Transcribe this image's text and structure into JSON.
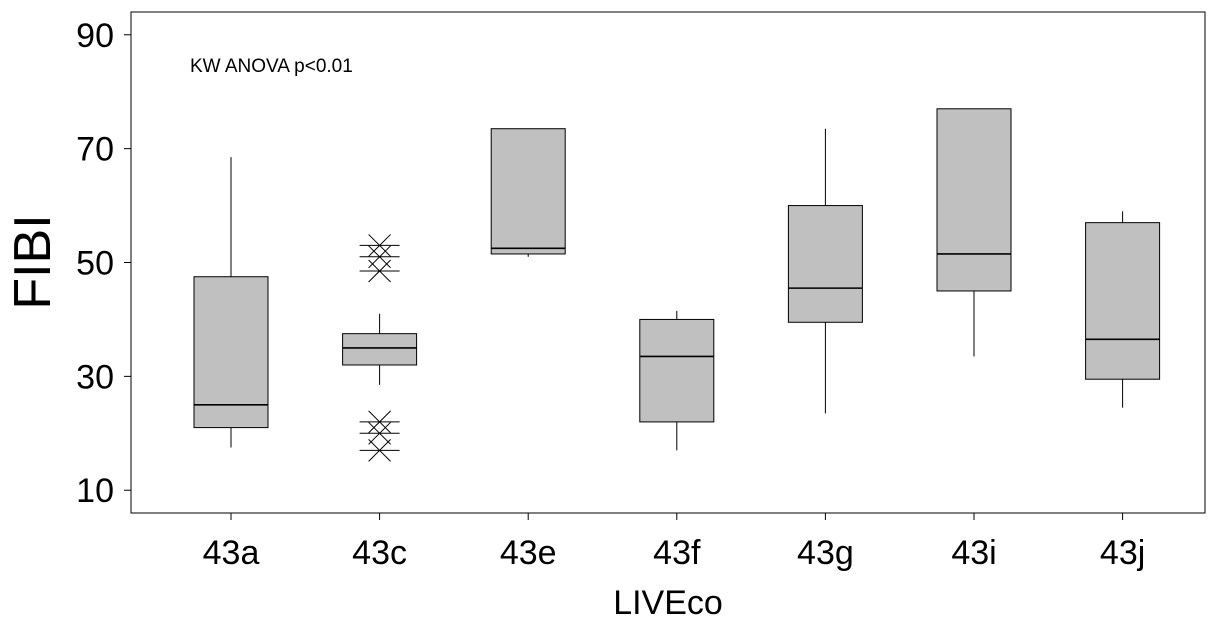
{
  "chart_data": {
    "type": "boxplot",
    "title": "",
    "xlabel": "LIVEco",
    "ylabel": "FIBI",
    "annotation": "KW ANOVA p<0.01",
    "ylim": [
      6,
      94
    ],
    "yticks": [
      10,
      30,
      50,
      70,
      90
    ],
    "grid": false,
    "categories": [
      "43a",
      "43c",
      "43e",
      "43f",
      "43g",
      "43i",
      "43j"
    ],
    "boxes": [
      {
        "category": "43a",
        "whisker_low": 17.5,
        "q1": 21,
        "median": 25,
        "q3": 47.5,
        "whisker_high": 68.5,
        "outliers": []
      },
      {
        "category": "43c",
        "whisker_low": 28.5,
        "q1": 32,
        "median": 35,
        "q3": 37.5,
        "whisker_high": 41,
        "outliers": [
          17,
          20,
          22,
          48.5,
          51,
          53
        ]
      },
      {
        "category": "43e",
        "whisker_low": 51,
        "q1": 51.5,
        "median": 52.5,
        "q3": 73.5,
        "whisker_high": 73.5,
        "outliers": []
      },
      {
        "category": "43f",
        "whisker_low": 17,
        "q1": 22,
        "median": 33.5,
        "q3": 40,
        "whisker_high": 41.5,
        "outliers": []
      },
      {
        "category": "43g",
        "whisker_low": 23.5,
        "q1": 39.5,
        "median": 45.5,
        "q3": 60,
        "whisker_high": 73.5,
        "outliers": []
      },
      {
        "category": "43i",
        "whisker_low": 33.5,
        "q1": 45,
        "median": 51.5,
        "q3": 77,
        "whisker_high": 77,
        "outliers": []
      },
      {
        "category": "43j",
        "whisker_low": 24.5,
        "q1": 29.5,
        "median": 36.5,
        "q3": 57,
        "whisker_high": 59,
        "outliers": []
      }
    ],
    "colors": {
      "box_fill": "#c0c0c0",
      "stroke": "#000000"
    }
  }
}
